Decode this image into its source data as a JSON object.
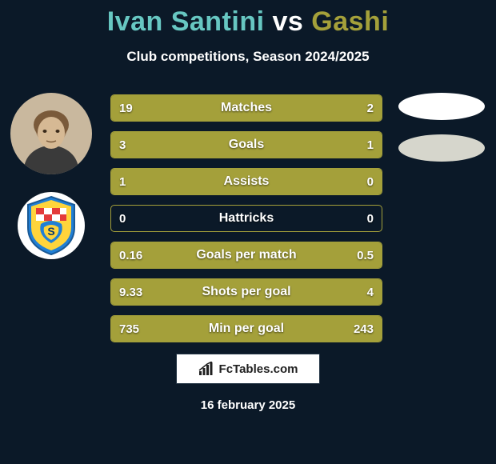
{
  "background_color": "#0b1928",
  "title": {
    "player1_name": "Ivan Santini",
    "vs": "vs",
    "player2_name": "Gashi",
    "player1_color": "#67c7c2",
    "vs_color": "#ffffff",
    "player2_color": "#a4a03a",
    "fontsize": 34
  },
  "subtitle": {
    "text": "Club competitions, Season 2024/2025",
    "color": "#ffffff",
    "fontsize": 17
  },
  "left_oval_colors": {
    "top": "#ffffff",
    "bottom": "#d6d6cc"
  },
  "crest": {
    "bg": "#ffffff",
    "shield_blue": "#1f7fd6",
    "shield_yellow": "#ffd43b",
    "shield_red": "#e33a3a"
  },
  "avatar_bg": "#c9b89e",
  "stats": {
    "bar_border_color": "#a4a03a",
    "bar_fill_color": "#a4a03a",
    "text_color": "#ffffff",
    "label_fontsize": 16,
    "value_fontsize": 15,
    "rows": [
      {
        "label": "Matches",
        "left_value": "19",
        "right_value": "2",
        "left_pct": 90,
        "right_pct": 10
      },
      {
        "label": "Goals",
        "left_value": "3",
        "right_value": "1",
        "left_pct": 75,
        "right_pct": 25
      },
      {
        "label": "Assists",
        "left_value": "1",
        "right_value": "0",
        "left_pct": 100,
        "right_pct": 0
      },
      {
        "label": "Hattricks",
        "left_value": "0",
        "right_value": "0",
        "left_pct": 0,
        "right_pct": 0
      },
      {
        "label": "Goals per match",
        "left_value": "0.16",
        "right_value": "0.5",
        "left_pct": 24,
        "right_pct": 76
      },
      {
        "label": "Shots per goal",
        "left_value": "9.33",
        "right_value": "4",
        "left_pct": 70,
        "right_pct": 30
      },
      {
        "label": "Min per goal",
        "left_value": "735",
        "right_value": "243",
        "left_pct": 75,
        "right_pct": 25
      }
    ]
  },
  "badge": {
    "text": "FcTables.com",
    "bg": "#ffffff",
    "text_color": "#202020",
    "icon_color": "#202020"
  },
  "date": {
    "text": "16 february 2025",
    "color": "#ffffff"
  }
}
